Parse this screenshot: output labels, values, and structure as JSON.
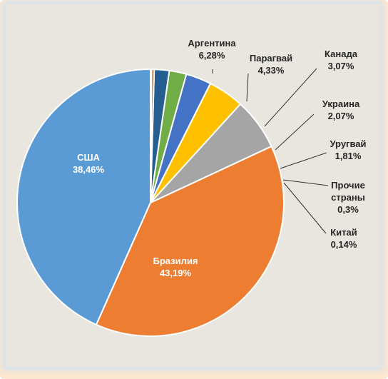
{
  "chart_data": {
    "type": "pie",
    "title": "",
    "start_angle_deg": -90,
    "clockwise": false,
    "slices": [
      {
        "label": "Бразилия",
        "value": 43.19,
        "value_text": "43,19%",
        "color": "#5b9bd5"
      },
      {
        "label": "США",
        "value": 38.46,
        "value_text": "38,46%",
        "color": "#ed7d31"
      },
      {
        "label": "Аргентина",
        "value": 6.28,
        "value_text": "6,28%",
        "color": "#a5a5a5"
      },
      {
        "label": "Парагвай",
        "value": 4.33,
        "value_text": "4,33%",
        "color": "#ffc000"
      },
      {
        "label": "Канада",
        "value": 3.07,
        "value_text": "3,07%",
        "color": "#4472c4"
      },
      {
        "label": "Украина",
        "value": 2.07,
        "value_text": "2,07%",
        "color": "#70ad47"
      },
      {
        "label": "Уругвай",
        "value": 1.81,
        "value_text": "1,81%",
        "color": "#255e91"
      },
      {
        "label": "Прочие страны",
        "value": 0.3,
        "value_text": "0,3%",
        "color": "#9e480e"
      },
      {
        "label": "Китай",
        "value": 0.14,
        "value_text": "0,14%",
        "color": "#636363"
      }
    ],
    "legend": "none"
  }
}
